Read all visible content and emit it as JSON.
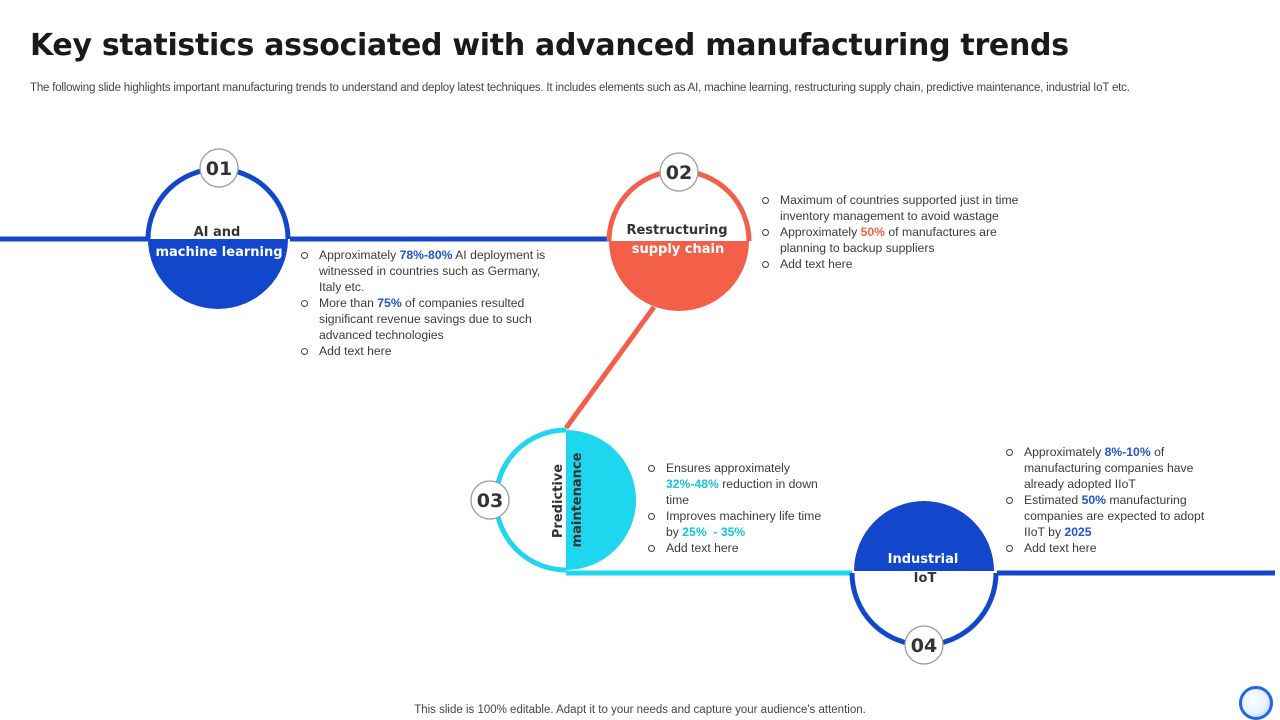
{
  "header": {
    "title": "Key statistics associated with advanced manufacturing trends",
    "subtitle": "The following slide highlights important manufacturing trends to understand and deploy latest techniques. It includes elements such as AI, machine learning, restructuring supply chain, predictive maintenance, industrial IoT etc."
  },
  "colors": {
    "blue": "#1247cc",
    "coral": "#f2604a",
    "cyan": "#1ed6ee",
    "highlight_blue": "#1f55c7",
    "highlight_coral": "#f2604a",
    "highlight_cyan": "#19c2e0"
  },
  "steps": [
    {
      "number": "01",
      "label_line1": "AI and",
      "label_line2": "machine learning",
      "bullets": [
        {
          "pre": "Approximately ",
          "hl": "78%-80%",
          "post": " AI deployment is witnessed in countries such as Germany, Italy etc."
        },
        {
          "pre": "More than ",
          "hl": "75%",
          "post": " of companies resulted significant revenue savings due to such advanced technologies"
        },
        {
          "pre": "Add text here",
          "hl": "",
          "post": ""
        }
      ]
    },
    {
      "number": "02",
      "label_line1": "Restructuring",
      "label_line2": "supply chain",
      "bullets": [
        {
          "pre": "Maximum of countries supported just in time inventory management to avoid wastage",
          "hl": "",
          "post": ""
        },
        {
          "pre": "Approximately ",
          "hl": "50%",
          "post": " of manufactures are planning to backup suppliers"
        },
        {
          "pre": "Add text here",
          "hl": "",
          "post": ""
        }
      ]
    },
    {
      "number": "03",
      "label_line1": "Predictive",
      "label_line2": "maintenance",
      "bullets": [
        {
          "pre": "Ensures approximately ",
          "hl": "32%-48%",
          "post": " reduction in down time"
        },
        {
          "pre": "Improves machinery life time by ",
          "hl": "25%  - 35%",
          "post": ""
        },
        {
          "pre": "Add text here",
          "hl": "",
          "post": ""
        }
      ]
    },
    {
      "number": "04",
      "label_line1": "Industrial",
      "label_line2": "IoT",
      "bullets": [
        {
          "pre": "Approximately ",
          "hl": "8%-10%",
          "post": " of manufacturing companies have already adopted IIoT"
        },
        {
          "pre": "Estimated ",
          "hl": "50%",
          "post": " manufacturing companies are expected to adopt IIoT by ",
          "hl2": "2025"
        },
        {
          "pre": "Add text here",
          "hl": "",
          "post": ""
        }
      ]
    }
  ],
  "footer": {
    "note": "This slide is 100% editable. Adapt it to your needs and capture your audience's attention."
  }
}
